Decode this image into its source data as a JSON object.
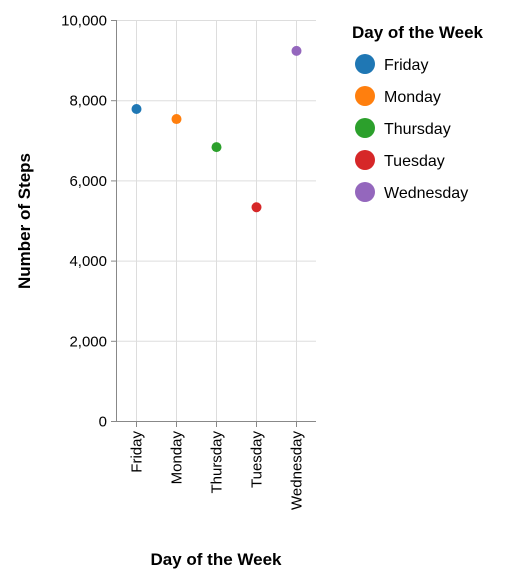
{
  "chart_data": {
    "type": "scatter",
    "categories": [
      "Friday",
      "Monday",
      "Thursday",
      "Tuesday",
      "Wednesday"
    ],
    "values": [
      7780,
      7530,
      6830,
      5330,
      9230
    ],
    "colors": [
      "#1f77b4",
      "#ff7f0e",
      "#2ca02c",
      "#d62728",
      "#9467bd"
    ],
    "xlabel": "Day of the Week",
    "ylabel": "Number of Steps",
    "ylim": [
      0,
      10000
    ],
    "yticks": [
      0,
      2000,
      4000,
      6000,
      8000,
      10000
    ],
    "ytick_labels": [
      "0",
      "2,000",
      "4,000",
      "6,000",
      "8,000",
      "10,000"
    ],
    "grid": true,
    "legend": {
      "title": "Day of the Week",
      "placement": "right",
      "entries": [
        "Friday",
        "Monday",
        "Thursday",
        "Tuesday",
        "Wednesday"
      ]
    }
  }
}
